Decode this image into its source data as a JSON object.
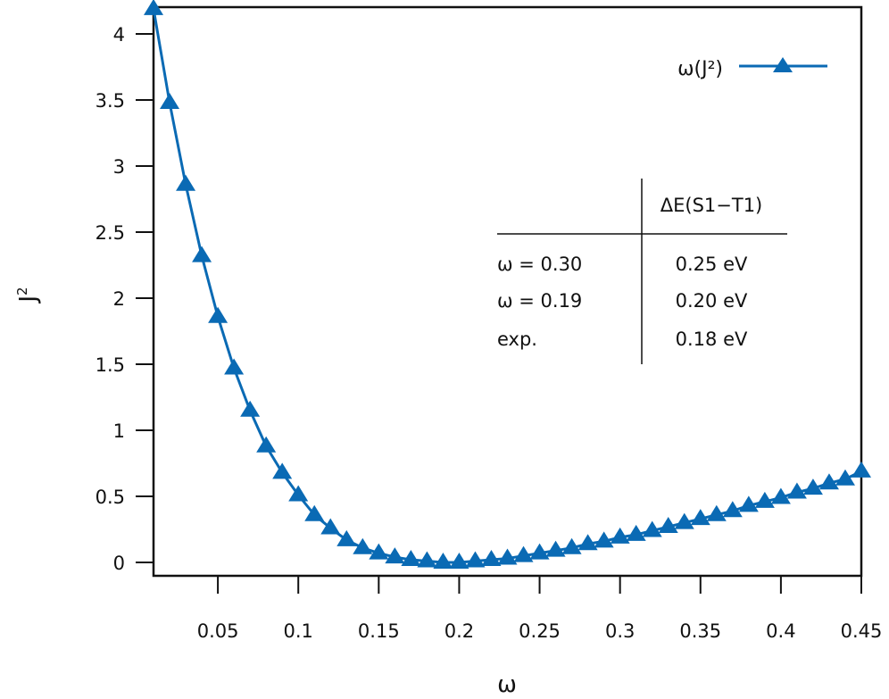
{
  "chart_data": {
    "type": "line",
    "title": "",
    "xlabel": "ω",
    "ylabel": "J²",
    "xlim": [
      0.01,
      0.45
    ],
    "ylim": [
      -0.1,
      4.2
    ],
    "xticks": [
      0.05,
      0.1,
      0.15,
      0.2,
      0.25,
      0.3,
      0.35,
      0.4,
      0.45
    ],
    "xtick_labels": [
      "0.05",
      "0.1",
      "0.15",
      "0.2",
      "0.25",
      "0.3",
      "0.35",
      "0.4",
      "0.45"
    ],
    "yticks": [
      0,
      0.5,
      1,
      1.5,
      2,
      2.5,
      3,
      3.5,
      4
    ],
    "ytick_labels": [
      "0",
      "0.5",
      "1",
      "1.5",
      "2",
      "2.5",
      "3",
      "3.5",
      "4"
    ],
    "grid": false,
    "legend_position": "top-right",
    "series": [
      {
        "name": "ω(J²)",
        "color": "#0a6ab4",
        "marker": "triangle",
        "x": [
          0.01,
          0.02,
          0.03,
          0.04,
          0.05,
          0.06,
          0.07,
          0.08,
          0.09,
          0.1,
          0.11,
          0.12,
          0.13,
          0.14,
          0.15,
          0.16,
          0.17,
          0.18,
          0.19,
          0.2,
          0.21,
          0.22,
          0.23,
          0.24,
          0.25,
          0.26,
          0.27,
          0.28,
          0.29,
          0.3,
          0.31,
          0.32,
          0.33,
          0.34,
          0.35,
          0.36,
          0.37,
          0.38,
          0.39,
          0.4,
          0.41,
          0.42,
          0.43,
          0.44,
          0.45
        ],
        "y": [
          4.19,
          3.48,
          2.86,
          2.32,
          1.86,
          1.47,
          1.15,
          0.88,
          0.68,
          0.51,
          0.36,
          0.26,
          0.17,
          0.11,
          0.07,
          0.04,
          0.02,
          0.01,
          0.0,
          0.0,
          0.01,
          0.02,
          0.03,
          0.05,
          0.07,
          0.09,
          0.11,
          0.14,
          0.16,
          0.19,
          0.21,
          0.24,
          0.27,
          0.3,
          0.33,
          0.36,
          0.39,
          0.43,
          0.46,
          0.49,
          0.53,
          0.56,
          0.6,
          0.63,
          0.69
        ]
      }
    ],
    "annotation_table": {
      "header": [
        "",
        "ΔE(S1−T1)"
      ],
      "rows": [
        [
          "ω = 0.30",
          "0.25 eV"
        ],
        [
          "ω = 0.19",
          "0.20 eV"
        ],
        [
          "exp.",
          "0.18 eV"
        ]
      ]
    }
  }
}
